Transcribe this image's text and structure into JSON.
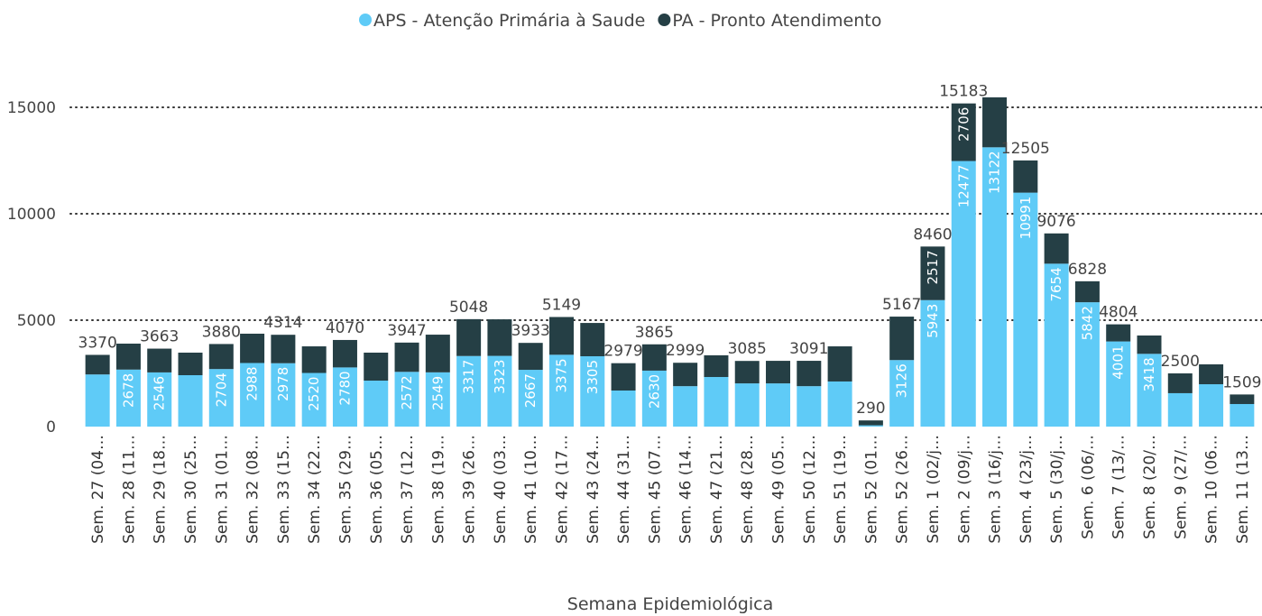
{
  "chart_data": {
    "type": "stacked_bar",
    "x_label": "Semana Epidemiológica",
    "categories": [
      "Sem. 27 (04…",
      "Sem. 28 (11…",
      "Sem. 29 (18…",
      "Sem. 30 (25…",
      "Sem. 31 (01…",
      "Sem. 32 (08…",
      "Sem. 33 (15…",
      "Sem. 34 (22…",
      "Sem. 35 (29…",
      "Sem. 36 (05…",
      "Sem. 37 (12…",
      "Sem. 38 (19…",
      "Sem. 39 (26…",
      "Sem. 40 (03…",
      "Sem. 41 (10…",
      "Sem. 42 (17…",
      "Sem. 43 (24…",
      "Sem. 44 (31…",
      "Sem. 45 (07…",
      "Sem. 46 (14…",
      "Sem. 47 (21…",
      "Sem. 48 (28…",
      "Sem. 49 (05…",
      "Sem. 50 (12…",
      "Sem. 51 (19…",
      "Sem. 52 (01…",
      "Sem. 52 (26…",
      "Sem. 1 (02/j…",
      "Sem. 2 (09/j…",
      "Sem. 3 (16/j…",
      "Sem. 4 (23/j…",
      "Sem. 5 (30/j…",
      "Sem. 6 (06/…",
      "Sem. 7 (13/…",
      "Sem. 8 (20/…",
      "Sem. 9 (27/…",
      "Sem. 10 (06…",
      "Sem. 11 (13…"
    ],
    "series": [
      {
        "name": "APS - Atenção Primária à Saude",
        "color": "#5fcbf7",
        "values": [
          2450,
          2678,
          2546,
          2415,
          2704,
          2988,
          2978,
          2520,
          2780,
          2160,
          2572,
          2549,
          3317,
          3323,
          2667,
          3375,
          3305,
          1695,
          2630,
          1900,
          2330,
          2030,
          2030,
          1900,
          2120,
          60,
          3126,
          5943,
          12477,
          13122,
          10991,
          7654,
          5842,
          4001,
          3418,
          1570,
          1990,
          1060
        ],
        "value_labels": [
          null,
          "2678",
          "2546",
          null,
          "2704",
          "2988",
          "2978",
          "2520",
          "2780",
          null,
          "2572",
          "2549",
          "3317",
          "3323",
          "2667",
          "3375",
          "3305",
          null,
          "2630",
          null,
          null,
          null,
          null,
          null,
          null,
          null,
          "3126",
          "5943",
          "12477",
          "13122",
          "10991",
          "7654",
          "5842",
          "4001",
          "3418",
          null,
          null,
          null
        ]
      },
      {
        "name": "PA - Pronto Atendimento",
        "color": "#253f45",
        "values": [
          920,
          1220,
          1117,
          1060,
          1176,
          1377,
          1336,
          1250,
          1290,
          1315,
          1375,
          1771,
          1731,
          1717,
          1266,
          1774,
          1565,
          1284,
          1235,
          1099,
          1020,
          1055,
          1060,
          1191,
          1650,
          230,
          2041,
          2517,
          2706,
          2348,
          1514,
          1422,
          986,
          803,
          862,
          930,
          935,
          449
        ],
        "value_labels": [
          null,
          null,
          null,
          null,
          null,
          null,
          null,
          null,
          null,
          null,
          null,
          null,
          null,
          null,
          null,
          null,
          null,
          null,
          null,
          null,
          null,
          null,
          null,
          null,
          null,
          null,
          null,
          "2517",
          "2706",
          null,
          null,
          null,
          null,
          null,
          null,
          null,
          null,
          null
        ]
      }
    ],
    "total_labels": [
      "3370",
      null,
      "3663",
      null,
      "3880",
      null,
      "4314",
      null,
      "4070",
      null,
      "3947",
      null,
      "5048",
      null,
      "3933",
      "5149",
      null,
      "2979",
      "3865",
      "2999",
      null,
      "3085",
      null,
      "3091",
      null,
      "290",
      "5167",
      "8460",
      "15183",
      null,
      "12505",
      "9076",
      "6828",
      "4804",
      null,
      "2500",
      null,
      "1509"
    ],
    "ylim": [
      0,
      16000
    ],
    "yticks": [
      0,
      5000,
      10000,
      15000
    ],
    "grid": true,
    "legend": "top"
  }
}
